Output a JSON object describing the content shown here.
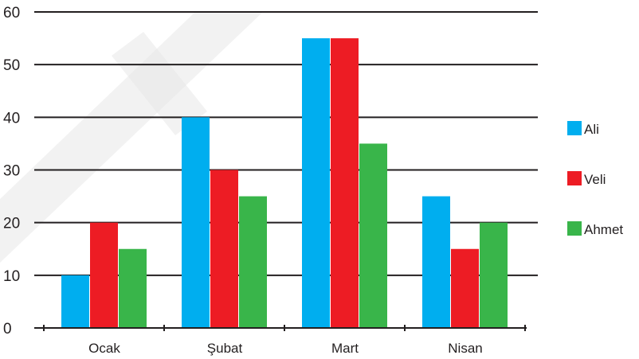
{
  "chart_data": {
    "type": "bar",
    "title": "",
    "xlabel": "",
    "ylabel": "",
    "categories": [
      "Ocak",
      "Şubat",
      "Mart",
      "Nisan"
    ],
    "series": [
      {
        "name": "Ali",
        "color": "#00aeef",
        "values": [
          10,
          40,
          55,
          25
        ]
      },
      {
        "name": "Veli",
        "color": "#ed1c24",
        "values": [
          20,
          30,
          55,
          15
        ]
      },
      {
        "name": "Ahmet",
        "color": "#39b54a",
        "values": [
          15,
          25,
          35,
          20
        ]
      }
    ],
    "ylim": [
      0,
      60
    ],
    "yticks": [
      0,
      10,
      20,
      30,
      40,
      50,
      60
    ],
    "grid": true,
    "legend_position": "right"
  },
  "watermark_color": "#e6e6e6"
}
